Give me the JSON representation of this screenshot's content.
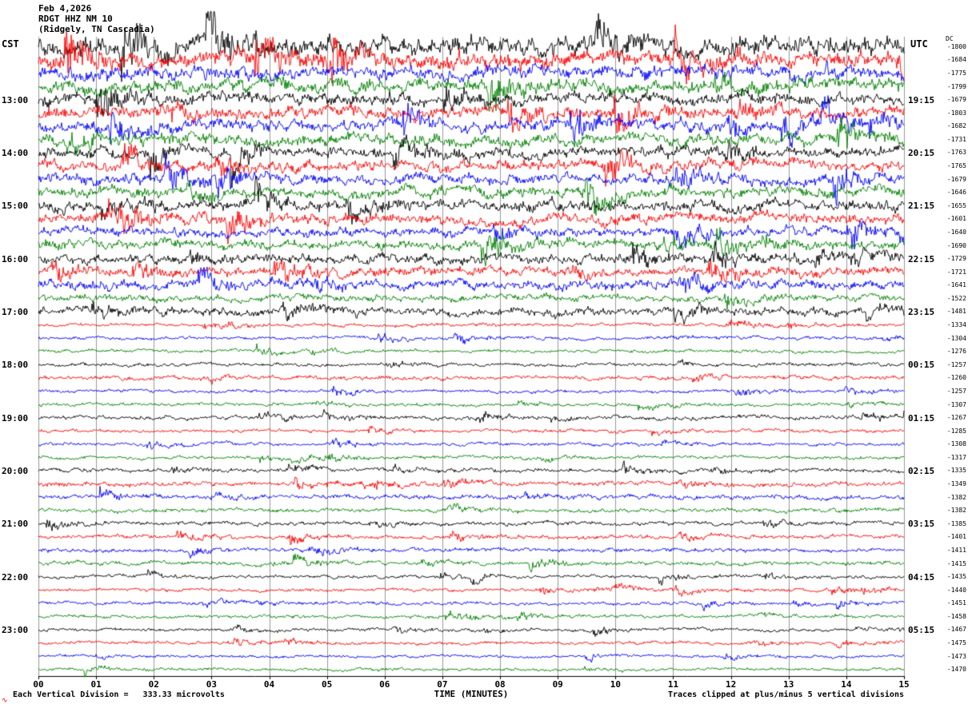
{
  "header": {
    "date": "Feb 4,2026",
    "station": "RDGT HHZ NM 10",
    "location": "(Ridgely, TN Cascadia)",
    "left_tz": "CST",
    "right_tz": "UTC",
    "dc_header": "DC"
  },
  "footer": {
    "division_note": "Each Vertical Division =   333.33 microvolts",
    "xlabel": "TIME (MINUTES)",
    "clip_note": "Traces clipped at plus/minus 5 vertical divisions",
    "red_mark": "∿"
  },
  "chart_data": {
    "type": "line",
    "subtype": "helicorder-seismogram",
    "title": "RDGT HHZ NM 10",
    "date": "Feb 4,2026",
    "location": "(Ridgely, TN Cascadia)",
    "xlabel": "TIME (MINUTES)",
    "x_range": [
      0,
      15
    ],
    "minutes_per_line": 15,
    "x_ticks": [
      "00",
      "01",
      "02",
      "03",
      "04",
      "05",
      "06",
      "07",
      "08",
      "09",
      "10",
      "11",
      "12",
      "13",
      "14",
      "15"
    ],
    "left_axis_label": "CST",
    "right_axis_label": "UTC",
    "dc_column_label": "DC",
    "trace_color_cycle": [
      "#000000",
      "#ff0000",
      "#0000ff",
      "#008000"
    ],
    "grid": "vertical-minute-lines",
    "clip_divisions": 5,
    "microvolts_per_division": 333.33,
    "rows": [
      {
        "cst": "",
        "utc": "",
        "dc": -1800,
        "color": "#000000",
        "amp": 14
      },
      {
        "cst": "",
        "utc": "",
        "dc": -1684,
        "color": "#ff0000",
        "amp": 12
      },
      {
        "cst": "",
        "utc": "",
        "dc": -1775,
        "color": "#0000ff",
        "amp": 10
      },
      {
        "cst": "",
        "utc": "",
        "dc": -1799,
        "color": "#008000",
        "amp": 10
      },
      {
        "cst": "13:00",
        "utc": "19:15",
        "dc": -1679,
        "color": "#000000",
        "amp": 9
      },
      {
        "cst": "",
        "utc": "",
        "dc": -1803,
        "color": "#ff0000",
        "amp": 9
      },
      {
        "cst": "",
        "utc": "",
        "dc": -1682,
        "color": "#0000ff",
        "amp": 9
      },
      {
        "cst": "",
        "utc": "",
        "dc": -1731,
        "color": "#008000",
        "amp": 9
      },
      {
        "cst": "14:00",
        "utc": "20:15",
        "dc": -1763,
        "color": "#000000",
        "amp": 8
      },
      {
        "cst": "",
        "utc": "",
        "dc": -1765,
        "color": "#ff0000",
        "amp": 8
      },
      {
        "cst": "",
        "utc": "",
        "dc": -1679,
        "color": "#0000ff",
        "amp": 8
      },
      {
        "cst": "",
        "utc": "",
        "dc": -1646,
        "color": "#008000",
        "amp": 8
      },
      {
        "cst": "15:00",
        "utc": "21:15",
        "dc": -1655,
        "color": "#000000",
        "amp": 8
      },
      {
        "cst": "",
        "utc": "",
        "dc": -1601,
        "color": "#ff0000",
        "amp": 8
      },
      {
        "cst": "",
        "utc": "",
        "dc": -1640,
        "color": "#0000ff",
        "amp": 7
      },
      {
        "cst": "",
        "utc": "",
        "dc": -1690,
        "color": "#008000",
        "amp": 7
      },
      {
        "cst": "16:00",
        "utc": "22:15",
        "dc": -1729,
        "color": "#000000",
        "amp": 7
      },
      {
        "cst": "",
        "utc": "",
        "dc": -1721,
        "color": "#ff0000",
        "amp": 7
      },
      {
        "cst": "",
        "utc": "",
        "dc": -1641,
        "color": "#0000ff",
        "amp": 7
      },
      {
        "cst": "",
        "utc": "",
        "dc": -1522,
        "color": "#008000",
        "amp": 5
      },
      {
        "cst": "17:00",
        "utc": "23:15",
        "dc": -1481,
        "color": "#000000",
        "amp": 6
      },
      {
        "cst": "",
        "utc": "",
        "dc": -1334,
        "color": "#ff0000",
        "amp": 2.5
      },
      {
        "cst": "",
        "utc": "",
        "dc": -1304,
        "color": "#0000ff",
        "amp": 2.5
      },
      {
        "cst": "",
        "utc": "",
        "dc": -1276,
        "color": "#008000",
        "amp": 2.5
      },
      {
        "cst": "18:00",
        "utc": "00:15",
        "dc": -1257,
        "color": "#000000",
        "amp": 2.5
      },
      {
        "cst": "",
        "utc": "",
        "dc": -1260,
        "color": "#ff0000",
        "amp": 3
      },
      {
        "cst": "",
        "utc": "",
        "dc": -1257,
        "color": "#0000ff",
        "amp": 2.5
      },
      {
        "cst": "",
        "utc": "",
        "dc": -1307,
        "color": "#008000",
        "amp": 2.5
      },
      {
        "cst": "19:00",
        "utc": "01:15",
        "dc": -1267,
        "color": "#000000",
        "amp": 3
      },
      {
        "cst": "",
        "utc": "",
        "dc": -1285,
        "color": "#ff0000",
        "amp": 2.5
      },
      {
        "cst": "",
        "utc": "",
        "dc": -1308,
        "color": "#0000ff",
        "amp": 2.5
      },
      {
        "cst": "",
        "utc": "",
        "dc": -1317,
        "color": "#008000",
        "amp": 2.5
      },
      {
        "cst": "20:00",
        "utc": "02:15",
        "dc": -1335,
        "color": "#000000",
        "amp": 3
      },
      {
        "cst": "",
        "utc": "",
        "dc": -1349,
        "color": "#ff0000",
        "amp": 3.5
      },
      {
        "cst": "",
        "utc": "",
        "dc": -1382,
        "color": "#0000ff",
        "amp": 3.5
      },
      {
        "cst": "",
        "utc": "",
        "dc": -1382,
        "color": "#008000",
        "amp": 3
      },
      {
        "cst": "21:00",
        "utc": "03:15",
        "dc": -1385,
        "color": "#000000",
        "amp": 3
      },
      {
        "cst": "",
        "utc": "",
        "dc": -1401,
        "color": "#ff0000",
        "amp": 3
      },
      {
        "cst": "",
        "utc": "",
        "dc": -1411,
        "color": "#0000ff",
        "amp": 3
      },
      {
        "cst": "",
        "utc": "",
        "dc": -1415,
        "color": "#008000",
        "amp": 3
      },
      {
        "cst": "22:00",
        "utc": "04:15",
        "dc": -1435,
        "color": "#000000",
        "amp": 2.5
      },
      {
        "cst": "",
        "utc": "",
        "dc": -1440,
        "color": "#ff0000",
        "amp": 2.5
      },
      {
        "cst": "",
        "utc": "",
        "dc": -1451,
        "color": "#0000ff",
        "amp": 2.5
      },
      {
        "cst": "",
        "utc": "",
        "dc": -1458,
        "color": "#008000",
        "amp": 2.5
      },
      {
        "cst": "23:00",
        "utc": "05:15",
        "dc": -1467,
        "color": "#000000",
        "amp": 2.5
      },
      {
        "cst": "",
        "utc": "",
        "dc": -1475,
        "color": "#ff0000",
        "amp": 2.5
      },
      {
        "cst": "",
        "utc": "",
        "dc": -1473,
        "color": "#0000ff",
        "amp": 2.2
      },
      {
        "cst": "",
        "utc": "",
        "dc": -1470,
        "color": "#008000",
        "amp": 2.2
      }
    ]
  }
}
